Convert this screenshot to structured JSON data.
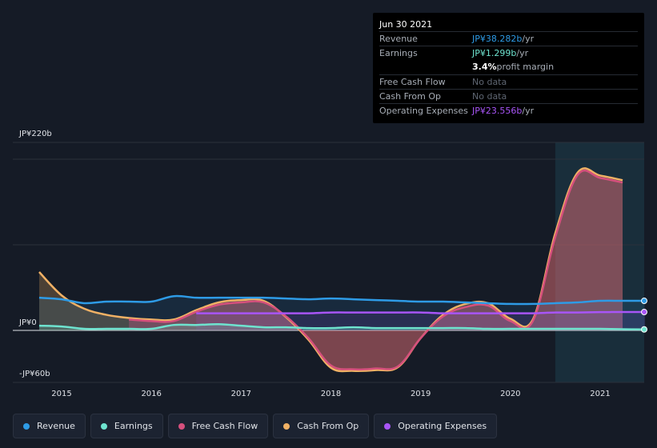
{
  "tooltip": {
    "date": "Jun 30 2021",
    "rows": [
      {
        "label": "Revenue",
        "value": "JP¥38.282b",
        "unit": " /yr",
        "color": "#2e9be6"
      },
      {
        "label": "Earnings",
        "value": "JP¥1.299b",
        "unit": " /yr",
        "color": "#6ee3cf"
      },
      {
        "label": "",
        "value": "3.4%",
        "unit": " profit margin",
        "color": "#ffffff"
      },
      {
        "label": "Free Cash Flow",
        "value": "No data",
        "unit": "",
        "color": "#5f6672"
      },
      {
        "label": "Cash From Op",
        "value": "No data",
        "unit": "",
        "color": "#5f6672"
      },
      {
        "label": "Operating Expenses",
        "value": "JP¥23.556b",
        "unit": " /yr",
        "color": "#a855f7"
      }
    ]
  },
  "legend": [
    {
      "label": "Revenue",
      "color": "#2e9be6"
    },
    {
      "label": "Earnings",
      "color": "#6ee3cf"
    },
    {
      "label": "Free Cash Flow",
      "color": "#d6507d"
    },
    {
      "label": "Cash From Op",
      "color": "#f0b165"
    },
    {
      "label": "Operating Expenses",
      "color": "#a855f7"
    }
  ],
  "chart_data": {
    "type": "area",
    "y_tick_labels": [
      {
        "value": 220,
        "label": "JP¥220b"
      },
      {
        "value": 0,
        "label": "JP¥0"
      },
      {
        "value": -60,
        "label": "-JP¥60b"
      }
    ],
    "ylim": [
      -60,
      220
    ],
    "xlim": [
      2014.6,
      2021.5
    ],
    "x_ticks": [
      2015,
      2016,
      2017,
      2018,
      2019,
      2020,
      2021
    ],
    "highlight_from": 2020.5,
    "series": [
      {
        "name": "Revenue",
        "color": "#2e9be6",
        "x": [
          2014.75,
          2015.0,
          2015.25,
          2015.5,
          2015.75,
          2016.0,
          2016.25,
          2016.5,
          2016.75,
          2017.0,
          2017.25,
          2017.5,
          2017.75,
          2018.0,
          2018.25,
          2018.5,
          2018.75,
          2019.0,
          2019.25,
          2019.5,
          2019.75,
          2020.0,
          2020.25,
          2020.5,
          2020.75,
          2021.0,
          2021.25,
          2021.5
        ],
        "y": [
          42,
          40,
          35,
          37,
          37,
          37,
          44,
          42,
          42,
          42,
          42,
          41,
          40,
          41,
          40,
          39,
          38,
          37,
          37,
          36,
          35,
          34,
          34,
          35,
          36,
          38,
          38,
          38
        ]
      },
      {
        "name": "Earnings",
        "color": "#6ee3cf",
        "x": [
          2014.75,
          2015.0,
          2015.25,
          2015.5,
          2015.75,
          2016.0,
          2016.25,
          2016.5,
          2016.75,
          2017.0,
          2017.25,
          2017.5,
          2017.75,
          2018.0,
          2018.25,
          2018.5,
          2018.75,
          2019.0,
          2019.25,
          2019.5,
          2019.75,
          2020.0,
          2020.25,
          2020.5,
          2020.75,
          2021.0,
          2021.25,
          2021.5
        ],
        "y": [
          6,
          5,
          2,
          2,
          2,
          2,
          7,
          7,
          8,
          6,
          4,
          4,
          3,
          3,
          4,
          3,
          3,
          3,
          3,
          3,
          2,
          2,
          2,
          2,
          2,
          2,
          1.5,
          1.3
        ]
      },
      {
        "name": "Free Cash Flow",
        "color": "#d6507d",
        "x": [
          2015.75,
          2016.0,
          2016.25,
          2016.5,
          2016.75,
          2017.0,
          2017.25,
          2017.5,
          2017.75,
          2018.0,
          2018.25,
          2018.5,
          2018.75,
          2019.0,
          2019.25,
          2019.5,
          2019.75,
          2020.0,
          2020.25,
          2020.5,
          2020.75,
          2021.0,
          2021.25
        ],
        "y": [
          14,
          12,
          12,
          24,
          33,
          36,
          36,
          18,
          -10,
          -45,
          -50,
          -49,
          -46,
          -10,
          18,
          30,
          32,
          12,
          12,
          120,
          200,
          196,
          190
        ]
      },
      {
        "name": "Cash From Op",
        "color": "#f0b165",
        "x": [
          2014.75,
          2015.0,
          2015.25,
          2015.5,
          2015.75,
          2016.0,
          2016.25,
          2016.5,
          2016.75,
          2017.0,
          2017.25,
          2017.5,
          2017.75,
          2018.0,
          2018.25,
          2018.5,
          2018.75,
          2019.0,
          2019.25,
          2019.5,
          2019.75,
          2020.0,
          2020.25,
          2020.5,
          2020.75,
          2021.0,
          2021.25
        ],
        "y": [
          75,
          45,
          28,
          20,
          16,
          14,
          14,
          26,
          36,
          39,
          38,
          17,
          -12,
          -48,
          -52,
          -51,
          -47,
          -10,
          20,
          34,
          35,
          15,
          14,
          125,
          203,
          199,
          193
        ]
      },
      {
        "name": "Operating Expenses",
        "color": "#a855f7",
        "x": [
          2016.5,
          2016.75,
          2017.0,
          2017.25,
          2017.5,
          2017.75,
          2018.0,
          2018.25,
          2018.5,
          2018.75,
          2019.0,
          2019.25,
          2019.5,
          2019.75,
          2020.0,
          2020.25,
          2020.5,
          2020.75,
          2021.0,
          2021.25,
          2021.5
        ],
        "y": [
          22,
          22,
          22,
          22,
          22,
          22,
          23,
          23,
          23,
          23,
          23,
          22,
          22,
          22,
          22,
          22,
          23,
          23,
          23.5,
          23.6,
          23.6
        ]
      }
    ]
  }
}
